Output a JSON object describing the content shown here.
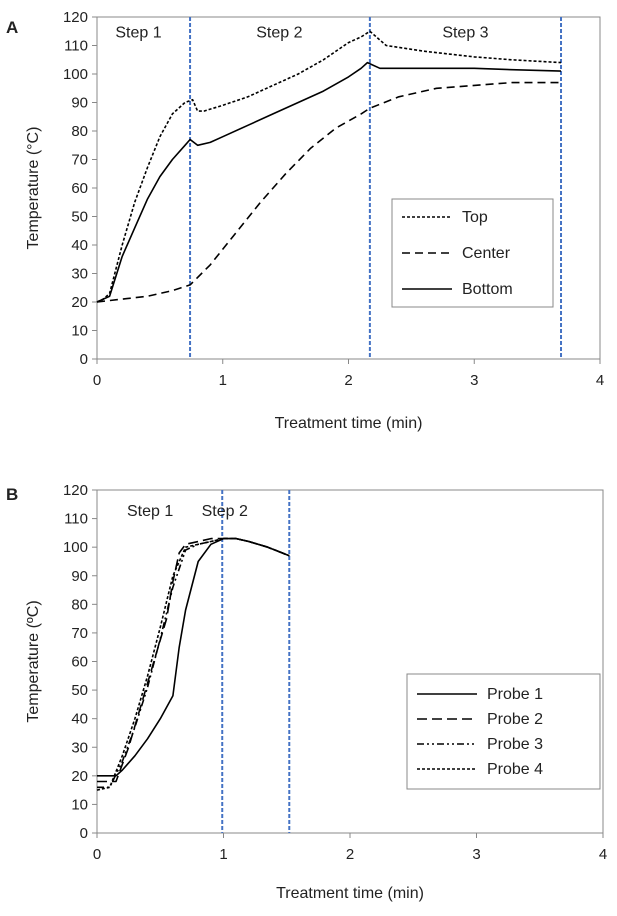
{
  "chart_data": [
    {
      "type": "line",
      "panel_label": "A",
      "xlabel": "Treatment time (min)",
      "ylabel": "Temperature (°C)",
      "xlim": [
        0,
        4
      ],
      "ylim": [
        0,
        120
      ],
      "xticks": [
        "0",
        "1",
        "2",
        "3",
        "4"
      ],
      "yticks": [
        "0",
        "10",
        "20",
        "30",
        "40",
        "50",
        "60",
        "70",
        "80",
        "90",
        "100",
        "110",
        "120"
      ],
      "legend_position": "center-right",
      "colors": {
        "series": "#000000",
        "step_line": "#4472c4",
        "frame": "#888888"
      },
      "step_lines": [
        0.74,
        2.17,
        3.69
      ],
      "steps": [
        {
          "label": "Step 1",
          "x": 0.33,
          "y": 115
        },
        {
          "label": "Step 2",
          "x": 1.45,
          "y": 115
        },
        {
          "label": "Step 3",
          "x": 2.93,
          "y": 115
        }
      ],
      "series": [
        {
          "name": "Top",
          "dash": "3,2",
          "x": [
            0,
            0.05,
            0.1,
            0.2,
            0.3,
            0.4,
            0.5,
            0.6,
            0.7,
            0.76,
            0.8,
            0.85,
            1.0,
            1.2,
            1.4,
            1.6,
            1.8,
            2.0,
            2.1,
            2.17,
            2.3,
            2.6,
            3.0,
            3.3,
            3.69
          ],
          "y": [
            20,
            21,
            23,
            40,
            55,
            67,
            78,
            86,
            90,
            91,
            87,
            87,
            89,
            92,
            96,
            100,
            105,
            111,
            113,
            115,
            110,
            108,
            106,
            105,
            104
          ]
        },
        {
          "name": "Center",
          "dash": "8,5",
          "x": [
            0,
            0.2,
            0.4,
            0.6,
            0.74,
            0.9,
            1.1,
            1.3,
            1.5,
            1.7,
            1.9,
            2.1,
            2.17,
            2.4,
            2.7,
            3.0,
            3.3,
            3.69
          ],
          "y": [
            20,
            21,
            22,
            24,
            26,
            33,
            44,
            55,
            65,
            74,
            81,
            86,
            88,
            92,
            95,
            96,
            97,
            97
          ]
        },
        {
          "name": "Bottom",
          "dash": "",
          "x": [
            0,
            0.05,
            0.1,
            0.2,
            0.3,
            0.4,
            0.5,
            0.6,
            0.7,
            0.74,
            0.8,
            0.9,
            1.0,
            1.2,
            1.4,
            1.6,
            1.8,
            2.0,
            2.1,
            2.15,
            2.25,
            2.5,
            3.0,
            3.3,
            3.69
          ],
          "y": [
            20,
            21,
            22,
            36,
            46,
            56,
            64,
            70,
            75,
            77,
            75,
            76,
            78,
            82,
            86,
            90,
            94,
            99,
            102,
            104,
            102,
            102,
            102,
            101.5,
            101
          ]
        }
      ]
    },
    {
      "type": "line",
      "panel_label": "B",
      "xlabel": "Treatment time (min)",
      "ylabel": "Temperature (ºC)",
      "xlim": [
        0,
        4
      ],
      "ylim": [
        0,
        120
      ],
      "xticks": [
        "0",
        "1",
        "2",
        "3",
        "4"
      ],
      "yticks": [
        "0",
        "10",
        "20",
        "30",
        "40",
        "50",
        "60",
        "70",
        "80",
        "90",
        "100",
        "110",
        "120"
      ],
      "legend_position": "bottom-right",
      "colors": {
        "series": "#000000",
        "step_line": "#4472c4",
        "frame": "#888888"
      },
      "step_lines": [
        0.99,
        1.52
      ],
      "steps": [
        {
          "label": "Step 1",
          "x": 0.42,
          "y": 113
        },
        {
          "label": "Step 2",
          "x": 1.01,
          "y": 113
        }
      ],
      "series": [
        {
          "name": "Probe 1",
          "dash": "",
          "x": [
            0,
            0.15,
            0.2,
            0.3,
            0.4,
            0.5,
            0.6,
            0.65,
            0.7,
            0.8,
            0.9,
            1.0,
            1.1,
            1.2,
            1.35,
            1.52
          ],
          "y": [
            20,
            20,
            22,
            27,
            33,
            40,
            48,
            65,
            78,
            95,
            101,
            103,
            103,
            102,
            100,
            97
          ]
        },
        {
          "name": "Probe 2",
          "dash": "10,5",
          "x": [
            0,
            0.15,
            0.25,
            0.35,
            0.45,
            0.55,
            0.6,
            0.65,
            0.7,
            0.8,
            0.9,
            1.0,
            1.1,
            1.2,
            1.35,
            1.52
          ],
          "y": [
            18,
            18,
            30,
            45,
            60,
            75,
            88,
            98,
            101,
            102,
            103,
            103,
            103,
            102,
            100,
            97
          ]
        },
        {
          "name": "Probe 3",
          "dash": "7,3,2,3,2,3",
          "x": [
            0,
            0.1,
            0.2,
            0.3,
            0.4,
            0.5,
            0.6,
            0.7,
            0.8,
            0.9,
            1.0,
            1.1,
            1.2,
            1.35,
            1.52
          ],
          "y": [
            16,
            16,
            25,
            37,
            51,
            68,
            86,
            99,
            101,
            102,
            103,
            103,
            102,
            100,
            97
          ]
        },
        {
          "name": "Probe 4",
          "dash": "3,2",
          "x": [
            0,
            0.1,
            0.2,
            0.3,
            0.4,
            0.5,
            0.6,
            0.7,
            0.8,
            0.9,
            1.0,
            1.1,
            1.2,
            1.35,
            1.52
          ],
          "y": [
            15,
            16,
            27,
            40,
            55,
            72,
            90,
            100,
            101,
            102,
            103,
            103,
            102,
            100,
            97
          ]
        }
      ]
    }
  ]
}
